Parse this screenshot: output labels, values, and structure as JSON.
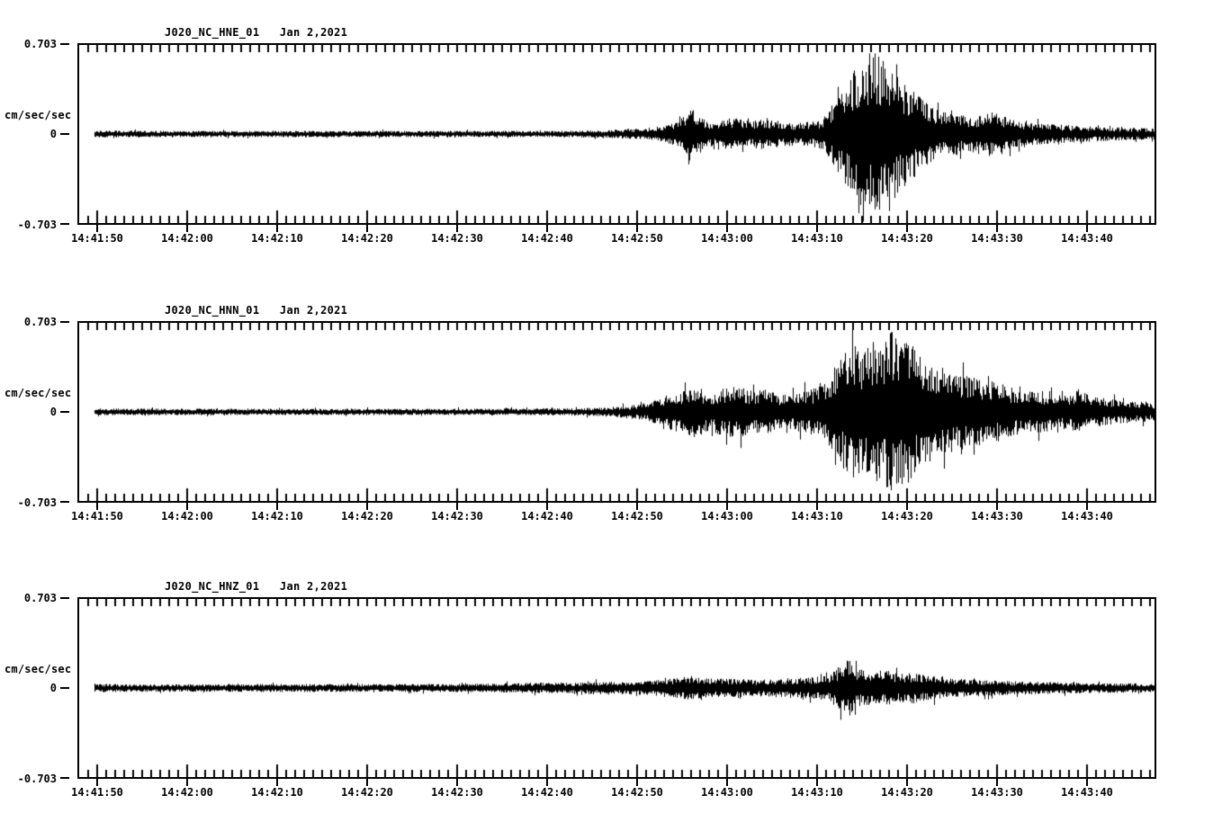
{
  "page": {
    "background": "#ffffff",
    "description_colors": {
      "trace": "#000000",
      "axis": "#000000",
      "text": "#000000"
    }
  },
  "chart_data": [
    {
      "type": "line",
      "subtype": "seismogram",
      "title": "J020_NC_HNE_01   Jan 2,2021",
      "station_channel": "J020_NC_HNE_01",
      "date_label": "Jan 2,2021",
      "ylabel": "cm/sec/sec",
      "ylim": [
        -0.703,
        0.703
      ],
      "y_ticks": [
        "0.703",
        "0",
        "-0.703"
      ],
      "x_ticks": [
        "14:41:50",
        "14:42:00",
        "14:42:10",
        "14:42:20",
        "14:42:30",
        "14:42:40",
        "14:42:50",
        "14:43:00",
        "14:43:10",
        "14:43:20",
        "14:43:30",
        "14:43:40"
      ],
      "x_major_tick_interval_sec": 10,
      "x_minor_tick_interval_sec": 1,
      "x_span_sec": 120,
      "amplitude_envelope_t_sec_vs_cm_s2": [
        [
          1.7,
          0.028
        ],
        [
          10,
          0.025
        ],
        [
          25,
          0.025
        ],
        [
          40,
          0.025
        ],
        [
          52,
          0.025
        ],
        [
          58,
          0.03
        ],
        [
          61,
          0.04
        ],
        [
          63.5,
          0.045
        ],
        [
          65,
          0.06
        ],
        [
          65.8,
          0.09
        ],
        [
          67,
          0.13
        ],
        [
          67.8,
          0.21
        ],
        [
          68.6,
          0.19
        ],
        [
          69.6,
          0.1
        ],
        [
          71,
          0.1
        ],
        [
          72.5,
          0.13
        ],
        [
          74,
          0.11
        ],
        [
          76,
          0.12
        ],
        [
          78,
          0.1
        ],
        [
          80,
          0.09
        ],
        [
          81.5,
          0.1
        ],
        [
          82.5,
          0.13
        ],
        [
          83.5,
          0.22
        ],
        [
          84.5,
          0.32
        ],
        [
          85.5,
          0.45
        ],
        [
          86.5,
          0.56
        ],
        [
          87.3,
          0.62
        ],
        [
          88.3,
          0.7
        ],
        [
          89,
          0.58
        ],
        [
          90,
          0.62
        ],
        [
          91,
          0.48
        ],
        [
          92,
          0.4
        ],
        [
          93,
          0.33
        ],
        [
          94,
          0.26
        ],
        [
          95,
          0.21
        ],
        [
          96,
          0.18
        ],
        [
          97,
          0.19
        ],
        [
          98,
          0.15
        ],
        [
          99,
          0.14
        ],
        [
          100,
          0.16
        ],
        [
          101,
          0.2
        ],
        [
          102,
          0.17
        ],
        [
          103,
          0.13
        ],
        [
          104,
          0.11
        ],
        [
          105,
          0.095
        ],
        [
          107,
          0.08
        ],
        [
          110,
          0.072
        ],
        [
          113,
          0.058
        ],
        [
          116,
          0.05
        ],
        [
          119.5,
          0.045
        ]
      ]
    },
    {
      "type": "line",
      "subtype": "seismogram",
      "title": "J020_NC_HNN_01   Jan 2,2021",
      "station_channel": "J020_NC_HNN_01",
      "date_label": "Jan 2,2021",
      "ylabel": "cm/sec/sec",
      "ylim": [
        -0.703,
        0.703
      ],
      "y_ticks": [
        "0.703",
        "0",
        "-0.703"
      ],
      "x_ticks": [
        "14:41:50",
        "14:42:00",
        "14:42:10",
        "14:42:20",
        "14:42:30",
        "14:42:40",
        "14:42:50",
        "14:43:00",
        "14:43:10",
        "14:43:20",
        "14:43:30",
        "14:43:40"
      ],
      "x_major_tick_interval_sec": 10,
      "x_minor_tick_interval_sec": 1,
      "x_span_sec": 120,
      "amplitude_envelope_t_sec_vs_cm_s2": [
        [
          1.7,
          0.028
        ],
        [
          15,
          0.025
        ],
        [
          40,
          0.025
        ],
        [
          52,
          0.027
        ],
        [
          56,
          0.03
        ],
        [
          60,
          0.045
        ],
        [
          62,
          0.06
        ],
        [
          64,
          0.09
        ],
        [
          65.5,
          0.14
        ],
        [
          67,
          0.17
        ],
        [
          68.5,
          0.21
        ],
        [
          70,
          0.15
        ],
        [
          71.5,
          0.19
        ],
        [
          73,
          0.21
        ],
        [
          74.5,
          0.17
        ],
        [
          76,
          0.18
        ],
        [
          77.5,
          0.15
        ],
        [
          79,
          0.14
        ],
        [
          80.5,
          0.17
        ],
        [
          82,
          0.19
        ],
        [
          83,
          0.25
        ],
        [
          84,
          0.38
        ],
        [
          85,
          0.46
        ],
        [
          86,
          0.56
        ],
        [
          87,
          0.5
        ],
        [
          88,
          0.6
        ],
        [
          89,
          0.53
        ],
        [
          90,
          0.66
        ],
        [
          91,
          0.57
        ],
        [
          92,
          0.6
        ],
        [
          93,
          0.5
        ],
        [
          94,
          0.46
        ],
        [
          95,
          0.39
        ],
        [
          96,
          0.35
        ],
        [
          97,
          0.32
        ],
        [
          98,
          0.3
        ],
        [
          99,
          0.28
        ],
        [
          100,
          0.27
        ],
        [
          101,
          0.25
        ],
        [
          102,
          0.24
        ],
        [
          103,
          0.21
        ],
        [
          104,
          0.19
        ],
        [
          105,
          0.17
        ],
        [
          106,
          0.155
        ],
        [
          107,
          0.17
        ],
        [
          108,
          0.145
        ],
        [
          109,
          0.135
        ],
        [
          110,
          0.14
        ],
        [
          111,
          0.19
        ],
        [
          112,
          0.145
        ],
        [
          113,
          0.115
        ],
        [
          115,
          0.1
        ],
        [
          117,
          0.085
        ],
        [
          119.5,
          0.072
        ]
      ]
    },
    {
      "type": "line",
      "subtype": "seismogram",
      "title": "J020_NC_HNZ_01   Jan 2,2021",
      "station_channel": "J020_NC_HNZ_01",
      "date_label": "Jan 2,2021",
      "ylabel": "cm/sec/sec",
      "ylim": [
        -0.703,
        0.703
      ],
      "y_ticks": [
        "0.703",
        "0",
        "-0.703"
      ],
      "x_ticks": [
        "14:41:50",
        "14:42:00",
        "14:42:10",
        "14:42:20",
        "14:42:30",
        "14:42:40",
        "14:42:50",
        "14:43:00",
        "14:43:10",
        "14:43:20",
        "14:43:30",
        "14:43:40"
      ],
      "x_major_tick_interval_sec": 10,
      "x_minor_tick_interval_sec": 1,
      "x_span_sec": 120,
      "amplitude_envelope_t_sec_vs_cm_s2": [
        [
          1.7,
          0.032
        ],
        [
          10,
          0.029
        ],
        [
          20,
          0.032
        ],
        [
          30,
          0.031
        ],
        [
          40,
          0.032
        ],
        [
          46,
          0.034
        ],
        [
          50,
          0.042
        ],
        [
          55,
          0.042
        ],
        [
          58,
          0.05
        ],
        [
          61,
          0.05
        ],
        [
          63,
          0.056
        ],
        [
          65,
          0.07
        ],
        [
          66.5,
          0.085
        ],
        [
          68,
          0.1
        ],
        [
          69.5,
          0.08
        ],
        [
          71,
          0.072
        ],
        [
          73,
          0.078
        ],
        [
          75,
          0.065
        ],
        [
          77,
          0.072
        ],
        [
          79,
          0.078
        ],
        [
          81,
          0.085
        ],
        [
          83,
          0.1
        ],
        [
          84,
          0.14
        ],
        [
          84.8,
          0.21
        ],
        [
          85.6,
          0.22
        ],
        [
          86.5,
          0.155
        ],
        [
          88,
          0.128
        ],
        [
          89.5,
          0.142
        ],
        [
          91,
          0.112
        ],
        [
          92.5,
          0.128
        ],
        [
          94,
          0.1
        ],
        [
          96,
          0.086
        ],
        [
          98,
          0.072
        ],
        [
          100,
          0.065
        ],
        [
          103,
          0.057
        ],
        [
          106,
          0.05
        ],
        [
          110,
          0.043
        ],
        [
          115,
          0.039
        ],
        [
          119.5,
          0.036
        ]
      ]
    }
  ]
}
